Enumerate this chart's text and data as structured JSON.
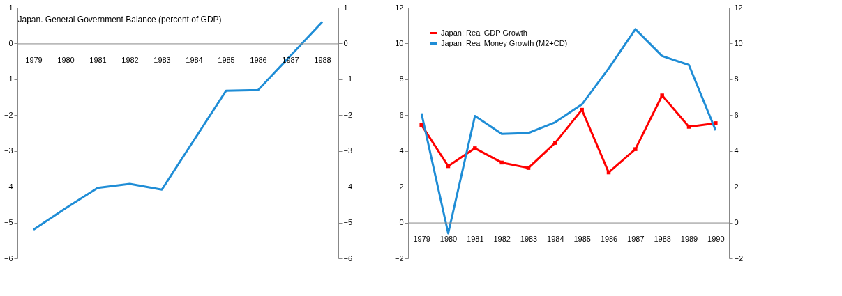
{
  "chart_data": [
    {
      "type": "line",
      "title": "Japan. General Government Balance (percent of GDP)",
      "categories": [
        "1979",
        "1980",
        "1981",
        "1982",
        "1983",
        "1984",
        "1985",
        "1986",
        "1987",
        "1988"
      ],
      "series": [
        {
          "color": "#1f8dd6",
          "values": [
            -5.2,
            -4.6,
            -4.03,
            -3.92,
            -4.08,
            -2.7,
            -1.32,
            -1.3,
            -0.35,
            0.6
          ]
        }
      ],
      "ylim": [
        -6,
        1
      ],
      "yticks": [
        -6,
        -5,
        -4,
        -3,
        -2,
        -1,
        0,
        1
      ],
      "y2lim": [
        -6,
        1
      ],
      "y2ticks": [
        -6,
        -5,
        -4,
        -3,
        -2,
        -1,
        0,
        1
      ],
      "grid": false,
      "legend": false,
      "marker": "none",
      "line_style": "solid"
    },
    {
      "type": "line",
      "categories": [
        "1979",
        "1980",
        "1981",
        "1982",
        "1983",
        "1984",
        "1985",
        "1986",
        "1987",
        "1988",
        "1989",
        "1990"
      ],
      "series": [
        {
          "name": "Japan: Real GDP Growth",
          "color": "#ff0000",
          "marker": "square",
          "values": [
            5.45,
            3.15,
            4.15,
            3.35,
            3.05,
            4.45,
            6.3,
            2.8,
            4.1,
            7.1,
            5.35,
            5.55
          ]
        },
        {
          "name": "Japan: Real Money Growth (M2+CD)",
          "color": "#1f8dd6",
          "marker": "none",
          "values": [
            6.1,
            -0.6,
            5.95,
            4.95,
            5.0,
            5.6,
            6.6,
            8.6,
            10.8,
            9.3,
            8.8,
            5.15
          ]
        }
      ],
      "ylim": [
        -2,
        12
      ],
      "yticks": [
        -2,
        0,
        2,
        4,
        6,
        8,
        10,
        12
      ],
      "y2lim": [
        -2,
        12
      ],
      "y2ticks": [
        -2,
        0,
        2,
        4,
        6,
        8,
        10,
        12
      ],
      "grid": false,
      "legend": "top left",
      "line_style": "solid"
    }
  ]
}
